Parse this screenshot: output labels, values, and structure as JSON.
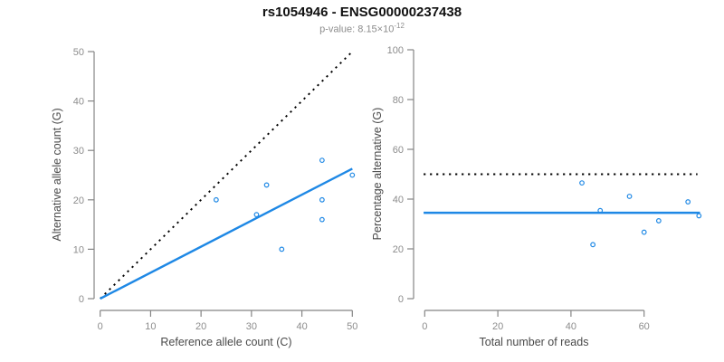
{
  "title": "rs1054946 - ENSG00000237438",
  "subtitle": {
    "prefix": "p-value: 8.15×10",
    "exponent": "-12"
  },
  "colors": {
    "accent_blue": "#1E88E5",
    "line_black": "#000000",
    "axis_gray": "#858585",
    "tick_label_gray": "#8c8c8c",
    "axis_title_color": "#4a4a4a"
  },
  "chart_data": [
    {
      "type": "scatter",
      "name": "allele-counts-plot",
      "xlabel": "Reference allele count (C)",
      "ylabel": "Alternative allele count (G)",
      "xlim": [
        0,
        50
      ],
      "ylim": [
        0,
        50
      ],
      "xticks": [
        0,
        10,
        20,
        30,
        40,
        50
      ],
      "yticks": [
        0,
        10,
        20,
        30,
        40,
        50
      ],
      "grid": false,
      "points": [
        [
          23,
          20
        ],
        [
          31,
          17
        ],
        [
          33,
          23
        ],
        [
          36,
          10
        ],
        [
          44,
          16
        ],
        [
          44,
          20
        ],
        [
          44,
          28
        ],
        [
          50,
          25
        ]
      ],
      "lines": [
        {
          "name": "identity-line",
          "style": "dotted",
          "color": "#000000",
          "from": [
            0,
            0
          ],
          "to": [
            50,
            50
          ]
        },
        {
          "name": "fit-line",
          "style": "solid",
          "color": "#1E88E5",
          "from": [
            0,
            0
          ],
          "to": [
            50,
            26.3
          ]
        }
      ]
    },
    {
      "type": "scatter",
      "name": "percentage-alternative-plot",
      "xlabel": "Total number of reads",
      "ylabel": "Percentage alternative (G)",
      "xlim": [
        0,
        75
      ],
      "ylim": [
        0,
        100
      ],
      "xticks": [
        0,
        20,
        40,
        60
      ],
      "yticks": [
        0,
        20,
        40,
        60,
        80,
        100
      ],
      "grid": false,
      "points": [
        [
          43,
          46.5
        ],
        [
          46,
          21.7
        ],
        [
          48,
          35.4
        ],
        [
          56,
          41.1
        ],
        [
          60,
          26.7
        ],
        [
          64,
          31.3
        ],
        [
          72,
          38.9
        ],
        [
          75,
          33.3
        ]
      ],
      "lines": [
        {
          "name": "reference-line",
          "style": "dotted",
          "color": "#000000",
          "from": [
            -0.3,
            50
          ],
          "to": [
            74.6,
            50
          ]
        },
        {
          "name": "mean-line",
          "style": "solid",
          "color": "#1E88E5",
          "from": [
            -0.3,
            34.5
          ],
          "to": [
            75.3,
            34.5
          ]
        }
      ]
    }
  ]
}
